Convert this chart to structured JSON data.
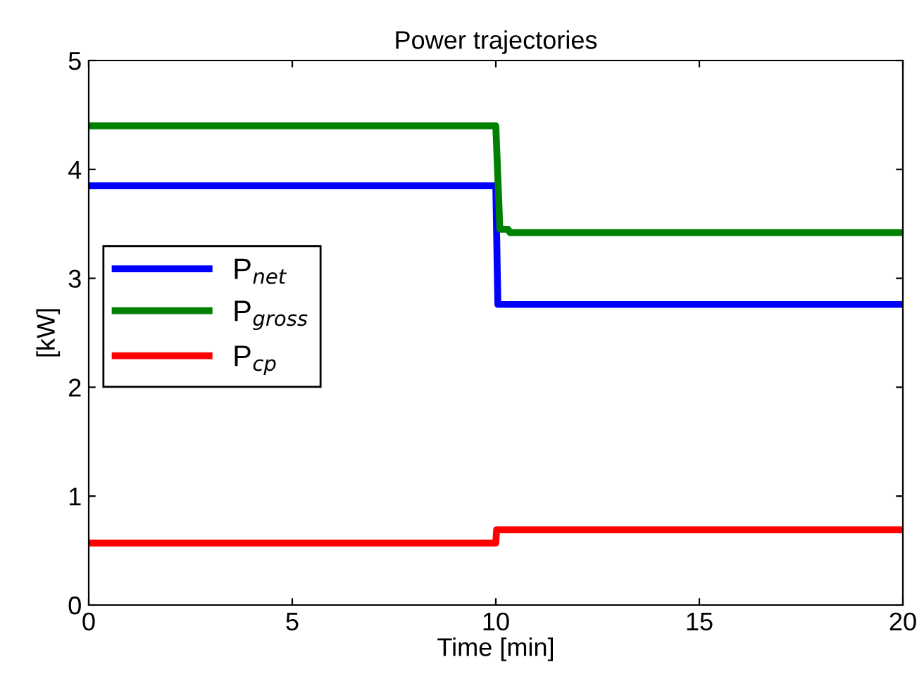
{
  "chart_data": {
    "type": "line",
    "title": "Power trajectories",
    "xlabel": "Time [min]",
    "ylabel": "[kW]",
    "xlim": [
      0,
      20
    ],
    "ylim": [
      0,
      5
    ],
    "xticks": [
      0,
      5,
      10,
      15,
      20
    ],
    "yticks": [
      0,
      1,
      2,
      3,
      4,
      5
    ],
    "grid": false,
    "legend": "left",
    "line_style": "solid",
    "marker": "none",
    "series": [
      {
        "name": "P$_{net}$",
        "color": "#0000ff",
        "x": [
          0,
          10,
          10.05,
          20
        ],
        "values": [
          3.85,
          3.85,
          2.76,
          2.76
        ]
      },
      {
        "name": "P$_{gross}$",
        "color": "#008000",
        "x": [
          0,
          10,
          10.1,
          10.3,
          10.35,
          20
        ],
        "values": [
          4.4,
          4.4,
          3.45,
          3.45,
          3.42,
          3.42
        ]
      },
      {
        "name": "P$_{cp}$",
        "color": "#ff0000",
        "x": [
          0,
          10,
          10.02,
          20
        ],
        "values": [
          0.57,
          0.57,
          0.69,
          0.69
        ]
      }
    ]
  }
}
